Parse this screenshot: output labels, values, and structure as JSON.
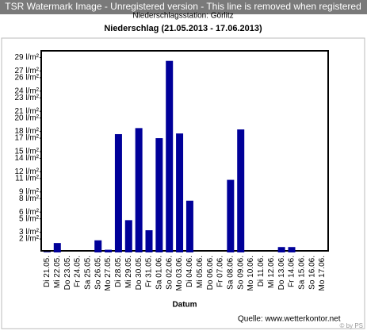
{
  "watermark": "TSR Watermark Image - Unregistered version - This line is removed when registered",
  "chart_data": {
    "type": "bar",
    "subtitle": "Niederschlagsstation: Görlitz",
    "title": "Niederschlag (21.05.2013 - 17.06.2013)",
    "x_label": "Datum",
    "source": "Quelle: www.wetterkontor.net",
    "credit": "© by PS",
    "categories": [
      "Di 21.05.",
      "Mi 22.05.",
      "Do 23.05.",
      "Fr 24.05.",
      "Sa 25.05.",
      "So 26.05.",
      "Mo 27.05.",
      "Di 28.05.",
      "Mi 29.05.",
      "Do 30.05.",
      "Fr 31.05.",
      "Sa 01.06.",
      "So 02.06.",
      "Mo 03.06.",
      "Di 04.06.",
      "Mi 05.06.",
      "Do 06.06.",
      "Fr 07.06.",
      "Sa 08.06.",
      "So 09.06.",
      "Mo 10.06.",
      "Di 11.06.",
      "Mi 12.06.",
      "Do 13.06.",
      "Fr 14.06.",
      "Sa 15.06.",
      "So 16.06.",
      "Mo 17.06."
    ],
    "values": [
      0.1,
      1.4,
      0,
      0,
      0,
      1.8,
      0.4,
      17.6,
      4.8,
      18.5,
      3.3,
      17.0,
      28.5,
      17.7,
      7.7,
      0,
      0,
      0,
      10.8,
      18.3,
      0,
      0,
      0,
      0.8,
      0.8,
      0,
      0,
      0
    ],
    "color": "#000099",
    "ylim": [
      0,
      30
    ],
    "yticks": [
      {
        "value": 2,
        "label": "2 l/m²"
      },
      {
        "value": 3,
        "label": "3 l/m²"
      },
      {
        "value": 5,
        "label": "5 l/m²"
      },
      {
        "value": 6,
        "label": "6 l/m²"
      },
      {
        "value": 8,
        "label": "8 l/m²"
      },
      {
        "value": 9,
        "label": "9 l/m²"
      },
      {
        "value": 11,
        "label": "11 l/m²"
      },
      {
        "value": 12,
        "label": "12 l/m²"
      },
      {
        "value": 14,
        "label": "14 l/m²"
      },
      {
        "value": 15,
        "label": "15 l/m²"
      },
      {
        "value": 17,
        "label": "17 l/m²"
      },
      {
        "value": 18,
        "label": "18 l/m²"
      },
      {
        "value": 20,
        "label": "20 l/m²"
      },
      {
        "value": 21,
        "label": "21 l/m²"
      },
      {
        "value": 23,
        "label": "23 l/m²"
      },
      {
        "value": 24,
        "label": "24 l/m²"
      },
      {
        "value": 26,
        "label": "26 l/m²"
      },
      {
        "value": 27,
        "label": "27 l/m²"
      },
      {
        "value": 29,
        "label": "29 l/m²"
      }
    ],
    "grid": false
  }
}
